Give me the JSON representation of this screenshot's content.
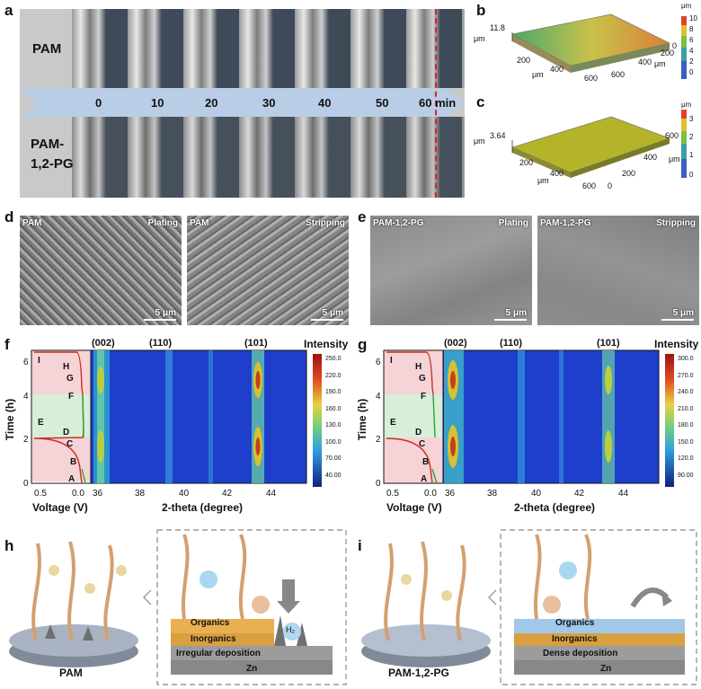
{
  "panels": {
    "a": "a",
    "b": "b",
    "c": "c",
    "d": "d",
    "e": "e",
    "f": "f",
    "g": "g",
    "h": "h",
    "i": "i"
  },
  "a": {
    "row_top": "PAM",
    "row_bottom_l1": "PAM-",
    "row_bottom_l2": "1,2-PG",
    "times": [
      "0",
      "10",
      "20",
      "30",
      "40",
      "50",
      "60 min"
    ]
  },
  "b": {
    "zunit": "μm",
    "zval": "11.8",
    "cbar_unit": "μm",
    "cbar_ticks": [
      "10",
      "8",
      "6",
      "4",
      "2",
      "0"
    ],
    "xunit": "μm",
    "yunit": "μm",
    "xticks": [
      "0",
      "200",
      "400",
      "600"
    ],
    "yticks": [
      "0",
      "200",
      "400",
      "600"
    ]
  },
  "c": {
    "zunit": "μm",
    "zval": "3.64",
    "cbar_unit": "μm",
    "cbar_ticks": [
      "3",
      "2",
      "1",
      "0"
    ],
    "xunit": "μm",
    "yunit": "μm",
    "xticks": [
      "0",
      "200",
      "400",
      "600"
    ],
    "yticks": [
      "0",
      "200",
      "400",
      "600"
    ]
  },
  "d": {
    "left_tl": "PAM",
    "left_tr": "Plating",
    "right_tl": "PAM",
    "right_tr": "Stripping",
    "scale": "5 μm"
  },
  "e": {
    "left_tl": "PAM-1,2-PG",
    "left_tr": "Plating",
    "right_tl": "PAM-1,2-PG",
    "right_tr": "Stripping",
    "scale": "5 μm"
  },
  "f": {
    "ylabel": "Time (h)",
    "xlabel_v": "Voltage (V)",
    "xlabel_t": "2-theta (degree)",
    "peaks": [
      "(002)",
      "(110)",
      "(101)"
    ],
    "intensity": "Intensity",
    "cbar_ticks": [
      "250.0",
      "220.0",
      "190.0",
      "160.0",
      "130.0",
      "100.0",
      "70.00",
      "40.00"
    ],
    "yticks": [
      "0",
      "2",
      "4",
      "6"
    ],
    "vticks": [
      "0.5",
      "0.0"
    ],
    "tticks": [
      "36",
      "38",
      "40",
      "42",
      "44"
    ],
    "points": [
      "I",
      "H",
      "G",
      "F",
      "E",
      "D",
      "C",
      "B",
      "A"
    ]
  },
  "g": {
    "ylabel": "Time (h)",
    "xlabel_v": "Voltage (V)",
    "xlabel_t": "2-theta (degree)",
    "peaks": [
      "(002)",
      "(110)",
      "(101)"
    ],
    "intensity": "Intensity",
    "cbar_ticks": [
      "300.0",
      "270.0",
      "240.0",
      "210.0",
      "180.0",
      "150.0",
      "120.0",
      "90.00"
    ],
    "yticks": [
      "0",
      "2",
      "4",
      "6"
    ],
    "vticks": [
      "0.5",
      "0.0"
    ],
    "tticks": [
      "36",
      "38",
      "40",
      "42",
      "44"
    ],
    "points": [
      "I",
      "H",
      "G",
      "F",
      "E",
      "D",
      "C",
      "B",
      "A"
    ]
  },
  "h": {
    "caption": "PAM",
    "layers": [
      "Organics",
      "Inorganics",
      "Irregular deposition",
      "Zn"
    ],
    "h2": "H₂"
  },
  "i": {
    "caption": "PAM-1,2-PG",
    "layers": [
      "Organics",
      "Inorganics",
      "Dense deposition",
      "Zn"
    ]
  },
  "colors": {
    "heat_bg": "#1d3fcc",
    "arrow": "#b4cbe6",
    "pink": "#f6d3d7",
    "green": "#d7efd8",
    "redline": "#e02020"
  }
}
